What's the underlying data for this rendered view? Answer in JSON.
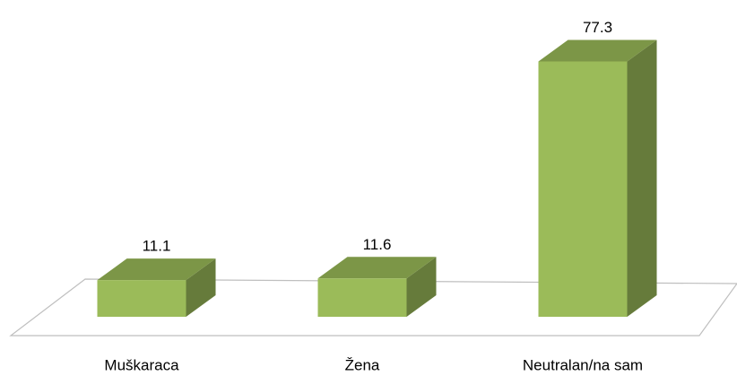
{
  "chart_data": {
    "type": "bar",
    "categories": [
      "Muškaraca",
      "Žena",
      "Neutralan/na sam"
    ],
    "values": [
      11.1,
      11.6,
      77.3
    ],
    "color": "#9bbb59"
  }
}
